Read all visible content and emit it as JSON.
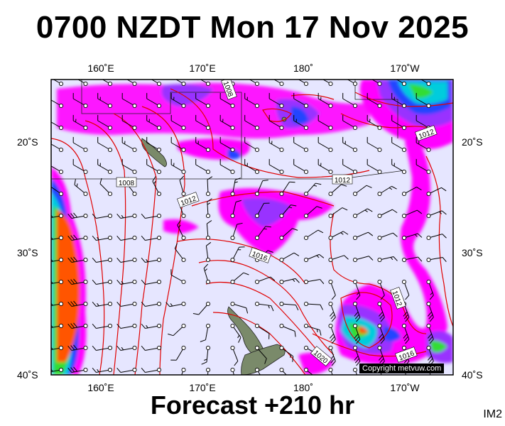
{
  "title": "0700 NZDT Mon 17 Nov 2025",
  "forecast": "Forecast +210 hr",
  "tag": "IM2",
  "copyright": "Copyright metvuw.com",
  "axes": {
    "lon_top": [
      "160˚E",
      "170˚E",
      "180˚",
      "170˚W"
    ],
    "lon_bottom": [
      "160˚E",
      "170˚E",
      "180˚",
      "170˚W"
    ],
    "lat_left": [
      "20˚S",
      "30˚S",
      "40˚S"
    ],
    "lat_right": [
      "20˚S",
      "30˚S",
      "40˚S"
    ]
  },
  "isobars": [
    {
      "label": "1008"
    },
    {
      "label": "1008"
    },
    {
      "label": "1012"
    },
    {
      "label": "1012"
    },
    {
      "label": "1012"
    },
    {
      "label": "1016"
    },
    {
      "label": "1012"
    },
    {
      "label": "1016"
    },
    {
      "label": "1020"
    }
  ],
  "colors": {
    "background": "#e6e6ff",
    "isobar": "#e00000",
    "rain_light": "#ff00ff",
    "rain_mid": "#9933ff",
    "rain_heavy": "#2244ff",
    "rain_very_heavy": "#00ccdd",
    "rain_extreme": "#ff5500"
  }
}
